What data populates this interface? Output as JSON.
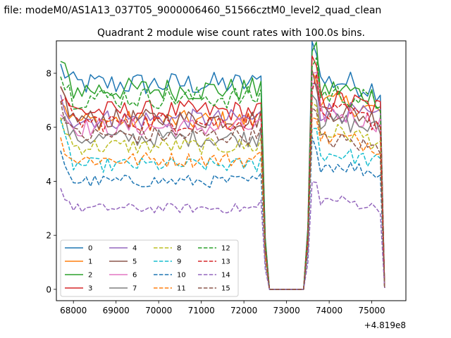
{
  "figure": {
    "suptitle": "n file: modeM0/AS1A13_037T05_9000006460_51566cztM0_level2_quad_clean",
    "title": "Quadrant 2 module wise count rates with 100.0s bins.",
    "offset_label": "+4.819e8"
  },
  "chart_data": {
    "type": "line",
    "title": "Quadrant 2 module wise count rates with 100.0s bins.",
    "xlabel": "",
    "ylabel": "",
    "x_offset": 481900000,
    "xlim": [
      67600,
      75800
    ],
    "ylim": [
      -0.42,
      9.2
    ],
    "xticks": [
      68000,
      69000,
      70000,
      71000,
      72000,
      73000,
      74000,
      75000
    ],
    "yticks": [
      0,
      2,
      4,
      6,
      8
    ],
    "grid": false,
    "legend_position": "lower-left",
    "legend_columns": 4,
    "time_structure": {
      "start": 67700,
      "bin": 100,
      "segment1_end": 72400,
      "drop_end": 72600,
      "gap_end": 73500,
      "segment2_start": 73600,
      "end": 75300
    },
    "series": [
      {
        "name": "0",
        "color": "#1f77b4",
        "dash": "solid",
        "level1": 7.6,
        "level2": 7.7,
        "start": 8.2
      },
      {
        "name": "1",
        "color": "#ff7f0e",
        "dash": "solid",
        "level1": 6.25,
        "level2": 6.9,
        "start": 7.1
      },
      {
        "name": "2",
        "color": "#2ca02c",
        "dash": "solid",
        "level1": 7.4,
        "level2": 7.4,
        "start": 8.3
      },
      {
        "name": "3",
        "color": "#d62728",
        "dash": "solid",
        "level1": 6.6,
        "level2": 7.0,
        "start": 7.5
      },
      {
        "name": "4",
        "color": "#9467bd",
        "dash": "solid",
        "level1": 6.3,
        "level2": 6.6,
        "start": 7.0
      },
      {
        "name": "5",
        "color": "#8c564b",
        "dash": "solid",
        "level1": 6.3,
        "level2": 6.6,
        "start": 7.4
      },
      {
        "name": "6",
        "color": "#e377c2",
        "dash": "solid",
        "level1": 6.0,
        "level2": 6.5,
        "start": 6.6
      },
      {
        "name": "7",
        "color": "#7f7f7f",
        "dash": "solid",
        "level1": 5.6,
        "level2": 6.2,
        "start": 6.4
      },
      {
        "name": "8",
        "color": "#bcbd22",
        "dash": "dashed",
        "level1": 5.3,
        "level2": 5.8,
        "start": 6.3
      },
      {
        "name": "9",
        "color": "#17becf",
        "dash": "dashed",
        "level1": 4.6,
        "level2": 5.0,
        "start": 6.0
      },
      {
        "name": "10",
        "color": "#1f77b4",
        "dash": "dashed",
        "level1": 4.0,
        "level2": 4.6,
        "start": 5.0
      },
      {
        "name": "11",
        "color": "#ff7f0e",
        "dash": "dashed",
        "level1": 4.8,
        "level2": 5.6,
        "start": 5.5
      },
      {
        "name": "12",
        "color": "#2ca02c",
        "dash": "dashed",
        "level1": 7.1,
        "level2": 7.2,
        "start": 7.9
      },
      {
        "name": "13",
        "color": "#d62728",
        "dash": "dashed",
        "level1": 6.2,
        "level2": 6.5,
        "start": 7.2
      },
      {
        "name": "14",
        "color": "#9467bd",
        "dash": "dashed",
        "level1": 3.0,
        "level2": 3.3,
        "start": 3.7
      },
      {
        "name": "15",
        "color": "#8c564b",
        "dash": "dashed",
        "level1": 5.7,
        "level2": 5.5,
        "start": 6.9
      }
    ]
  }
}
